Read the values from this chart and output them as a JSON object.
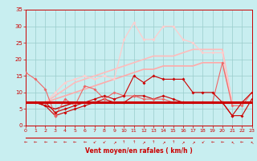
{
  "x": [
    0,
    1,
    2,
    3,
    4,
    5,
    6,
    7,
    8,
    9,
    10,
    11,
    12,
    13,
    14,
    15,
    16,
    17,
    18,
    19,
    20,
    21,
    22,
    23
  ],
  "bg_color": "#c8eef0",
  "grid_color": "#99cccc",
  "tick_color": "#cc0000",
  "label_color": "#cc0000",
  "xlabel": "Vent moyen/en rafales ( km/h )",
  "xlim": [
    0,
    23
  ],
  "ylim": [
    0,
    35
  ],
  "yticks": [
    0,
    5,
    10,
    15,
    20,
    25,
    30,
    35
  ],
  "xticks": [
    0,
    1,
    2,
    3,
    4,
    5,
    6,
    7,
    8,
    9,
    10,
    11,
    12,
    13,
    14,
    15,
    16,
    17,
    18,
    19,
    20,
    21,
    22,
    23
  ],
  "lines": [
    {
      "values": [
        7,
        7,
        7,
        7,
        7,
        7,
        7,
        7,
        7,
        7,
        7,
        7,
        7,
        7,
        7,
        7,
        7,
        7,
        7,
        7,
        7,
        7,
        7,
        7
      ],
      "color": "#cc0000",
      "lw": 2.2,
      "marker": null,
      "ms": 0,
      "zorder": 5
    },
    {
      "values": [
        7,
        7,
        6,
        5,
        6,
        7,
        7,
        7,
        7,
        7,
        7,
        7,
        7,
        7,
        7,
        7,
        7,
        7,
        7,
        7,
        7,
        7,
        7,
        7
      ],
      "color": "#cc0000",
      "lw": 1.0,
      "marker": null,
      "ms": 0,
      "zorder": 4
    },
    {
      "values": [
        7,
        7,
        6,
        3,
        4,
        5,
        6,
        7,
        8,
        7,
        7,
        9,
        9,
        8,
        9,
        8,
        7,
        7,
        7,
        7,
        7,
        3,
        3,
        8
      ],
      "color": "#cc0000",
      "lw": 0.8,
      "marker": "D",
      "ms": 2,
      "zorder": 4
    },
    {
      "values": [
        7,
        7,
        7,
        4,
        5,
        6,
        7,
        8,
        9,
        8,
        9,
        15,
        13,
        15,
        14,
        14,
        14,
        10,
        10,
        10,
        7,
        3,
        7,
        10
      ],
      "color": "#cc0000",
      "lw": 0.8,
      "marker": "D",
      "ms": 2,
      "zorder": 5
    },
    {
      "values": [
        16,
        14,
        11,
        3,
        8,
        6,
        12,
        11,
        8,
        10,
        9,
        9,
        8,
        8,
        8,
        7,
        7,
        7,
        7,
        7,
        19,
        6,
        6,
        10
      ],
      "color": "#ee6666",
      "lw": 0.8,
      "marker": "D",
      "ms": 2,
      "zorder": 4
    },
    {
      "values": [
        7,
        7,
        7,
        8,
        9,
        10,
        11,
        12,
        13,
        14,
        15,
        16,
        17,
        17,
        18,
        18,
        18,
        18,
        19,
        19,
        19,
        7,
        7,
        7
      ],
      "color": "#ffaaaa",
      "lw": 1.2,
      "marker": null,
      "ms": 0,
      "zorder": 2
    },
    {
      "values": [
        7,
        7,
        7,
        9,
        11,
        13,
        14,
        15,
        16,
        17,
        18,
        19,
        20,
        21,
        21,
        21,
        22,
        23,
        23,
        23,
        23,
        7,
        7,
        7
      ],
      "color": "#ffbbbb",
      "lw": 1.2,
      "marker": null,
      "ms": 0,
      "zorder": 2
    },
    {
      "values": [
        7,
        7,
        7,
        10,
        13,
        14,
        15,
        14,
        15,
        14,
        26,
        31,
        26,
        26,
        30,
        30,
        26,
        25,
        22,
        22,
        22,
        7,
        7,
        7
      ],
      "color": "#ffcccc",
      "lw": 0.9,
      "marker": "D",
      "ms": 2,
      "zorder": 2
    }
  ],
  "arrows": [
    "←",
    "←",
    "←",
    "←",
    "←",
    "←",
    "←",
    "↙",
    "↙",
    "↗",
    "↑",
    "↑",
    "↗",
    "↑",
    "↗",
    "↑",
    "↗",
    "↗",
    "↙",
    "←",
    "←",
    "↖",
    "←",
    "↖"
  ]
}
